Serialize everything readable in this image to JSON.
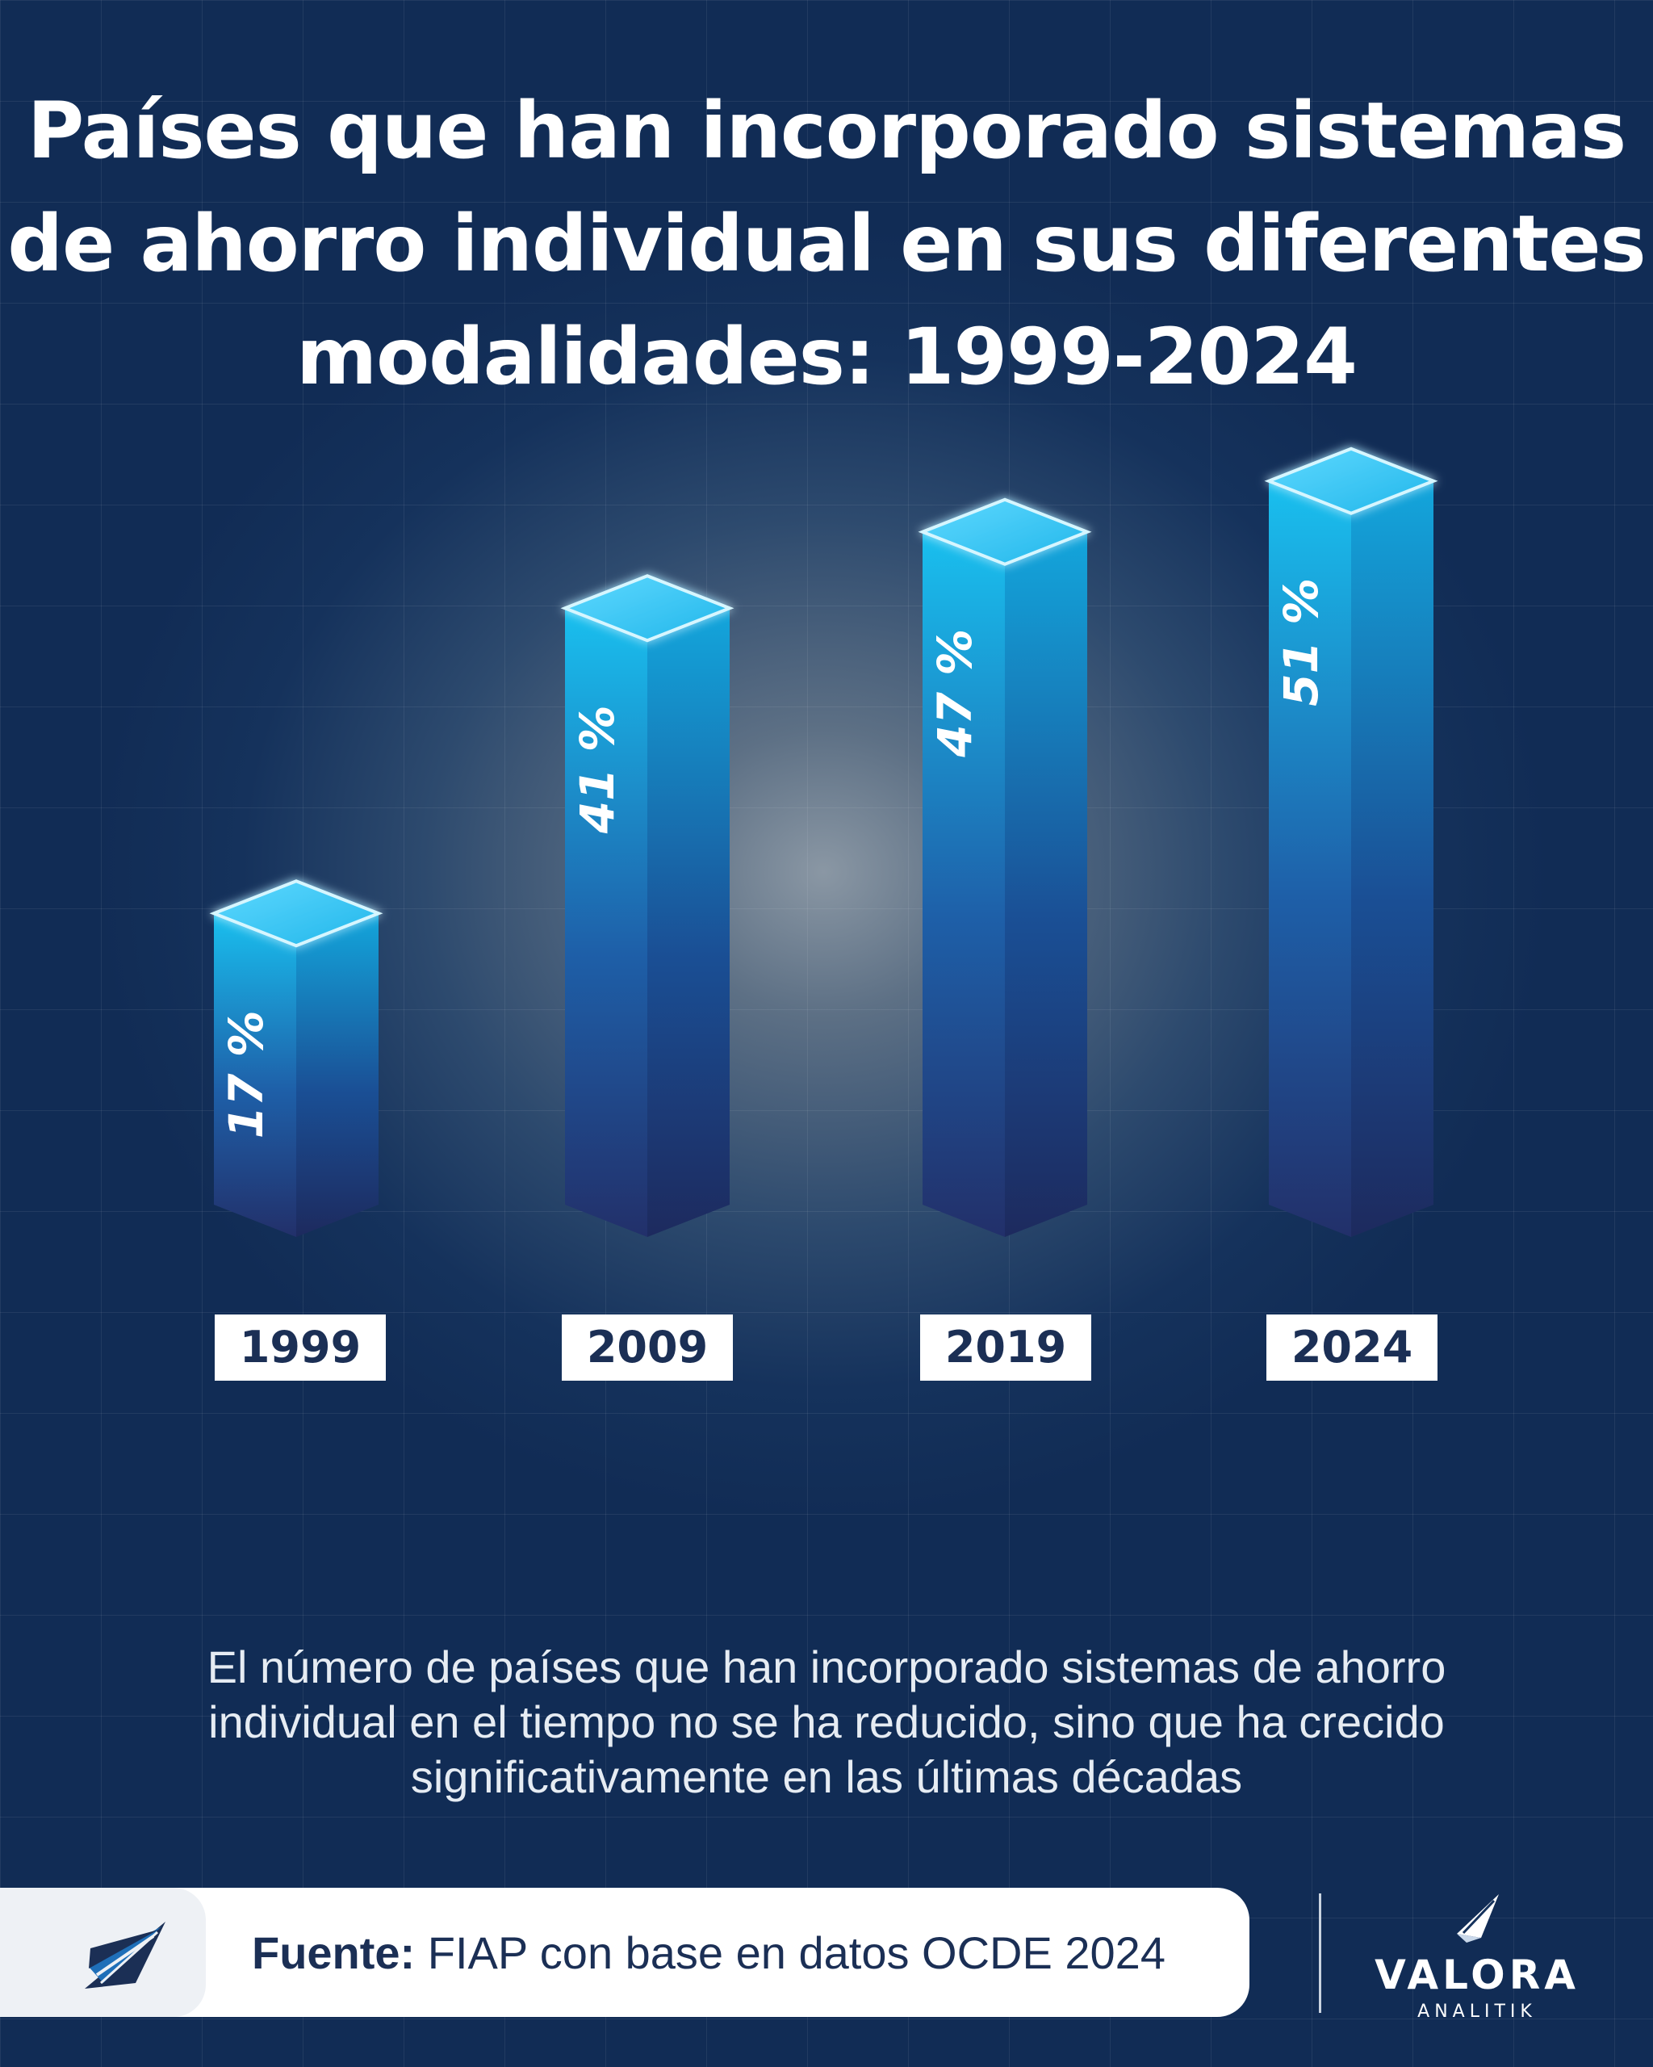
{
  "title_lines": [
    "Países que han incorporado sistemas",
    "de ahorro individual en sus diferentes",
    "modalidades: 1999-2024"
  ],
  "chart_data": {
    "type": "bar",
    "categories": [
      "1999",
      "2009",
      "2019",
      "2024"
    ],
    "values": [
      17,
      41,
      47,
      51
    ],
    "value_labels": [
      "17 %",
      "41 %",
      "47 %",
      "51 %"
    ],
    "unit": "%"
  },
  "caption_lines": [
    "El número de países que han incorporado sistemas de ahorro",
    "individual en el tiempo no se ha reducido, sino que ha crecido",
    "significativamente en las últimas décadas"
  ],
  "source": {
    "label": "Fuente:",
    "text": " FIAP con base en datos OCDE 2024"
  },
  "brand": {
    "name": "VALORA",
    "sub": "ANALITIK",
    "icon": "valora-logo-icon"
  },
  "colors": {
    "background": "#112c55",
    "bar_top": "#19c0ef",
    "bar_bottom": "#24346a",
    "label_text": "#1b2f55"
  }
}
